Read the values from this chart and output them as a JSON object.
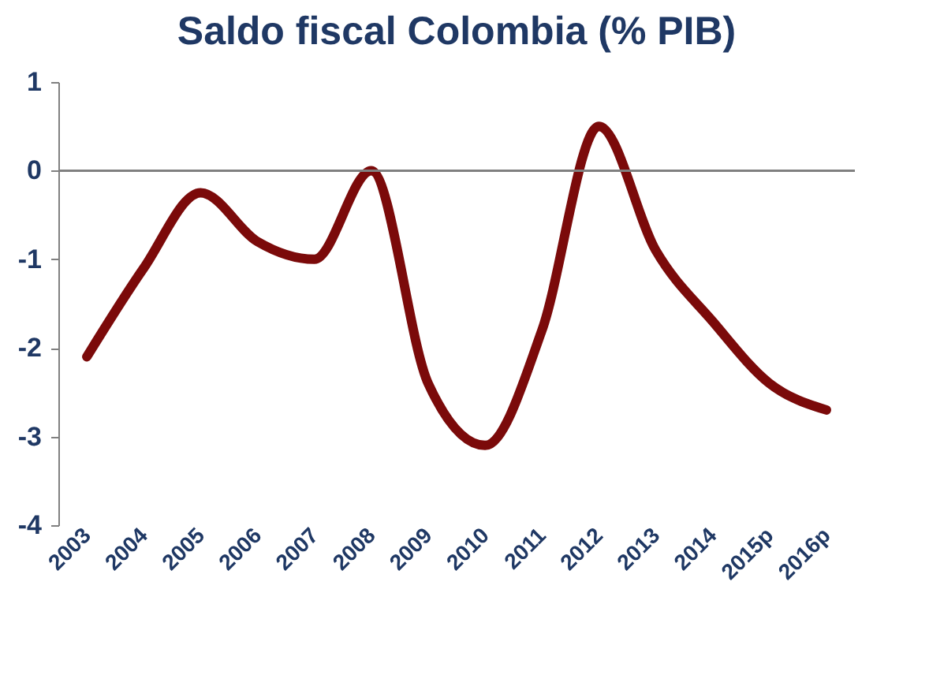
{
  "chart_data": {
    "type": "line",
    "title": "Saldo fiscal Colombia (% PIB)",
    "categories": [
      "2003",
      "2004",
      "2005",
      "2006",
      "2007",
      "2008",
      "2009",
      "2010",
      "2011",
      "2012",
      "2013",
      "2014",
      "2015p",
      "2016p"
    ],
    "series": [
      {
        "color": "#7b0a0a",
        "values": [
          -2.1,
          -1.1,
          -0.25,
          -0.8,
          -1.0,
          0.0,
          -2.4,
          -3.1,
          -1.8,
          0.5,
          -0.9,
          -1.7,
          -2.4,
          -2.7
        ]
      }
    ],
    "ylim": [
      -4,
      1
    ],
    "yticks": [
      -4,
      -3,
      -2,
      -1,
      0,
      1
    ],
    "ref_lines": [
      {
        "axis": "y",
        "value": 0,
        "color": "#808080"
      }
    ],
    "grid": false,
    "legend": false,
    "marker": "none",
    "line_style": "solid"
  }
}
